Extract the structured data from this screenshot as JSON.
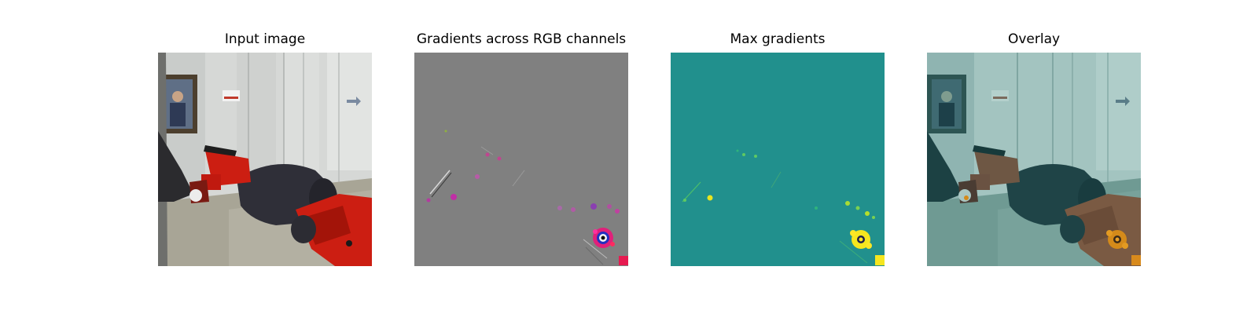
{
  "figure": {
    "panels": [
      {
        "id": "input",
        "title": "Input image"
      },
      {
        "id": "rgb_gradients",
        "title": "Gradients across RGB channels"
      },
      {
        "id": "max_gradients",
        "title": "Max gradients"
      },
      {
        "id": "overlay",
        "title": "Overlay"
      }
    ]
  },
  "colors": {
    "background": "#ffffff",
    "gradient_neutral_gray": "#808080",
    "viridis_mid_teal": "#21908d",
    "viridis_high_yellow": "#f5e61f",
    "highlight_magenta": "#e0207a",
    "robot_red": "#cc1e12",
    "overlay_tint": "#4fb0aa"
  }
}
